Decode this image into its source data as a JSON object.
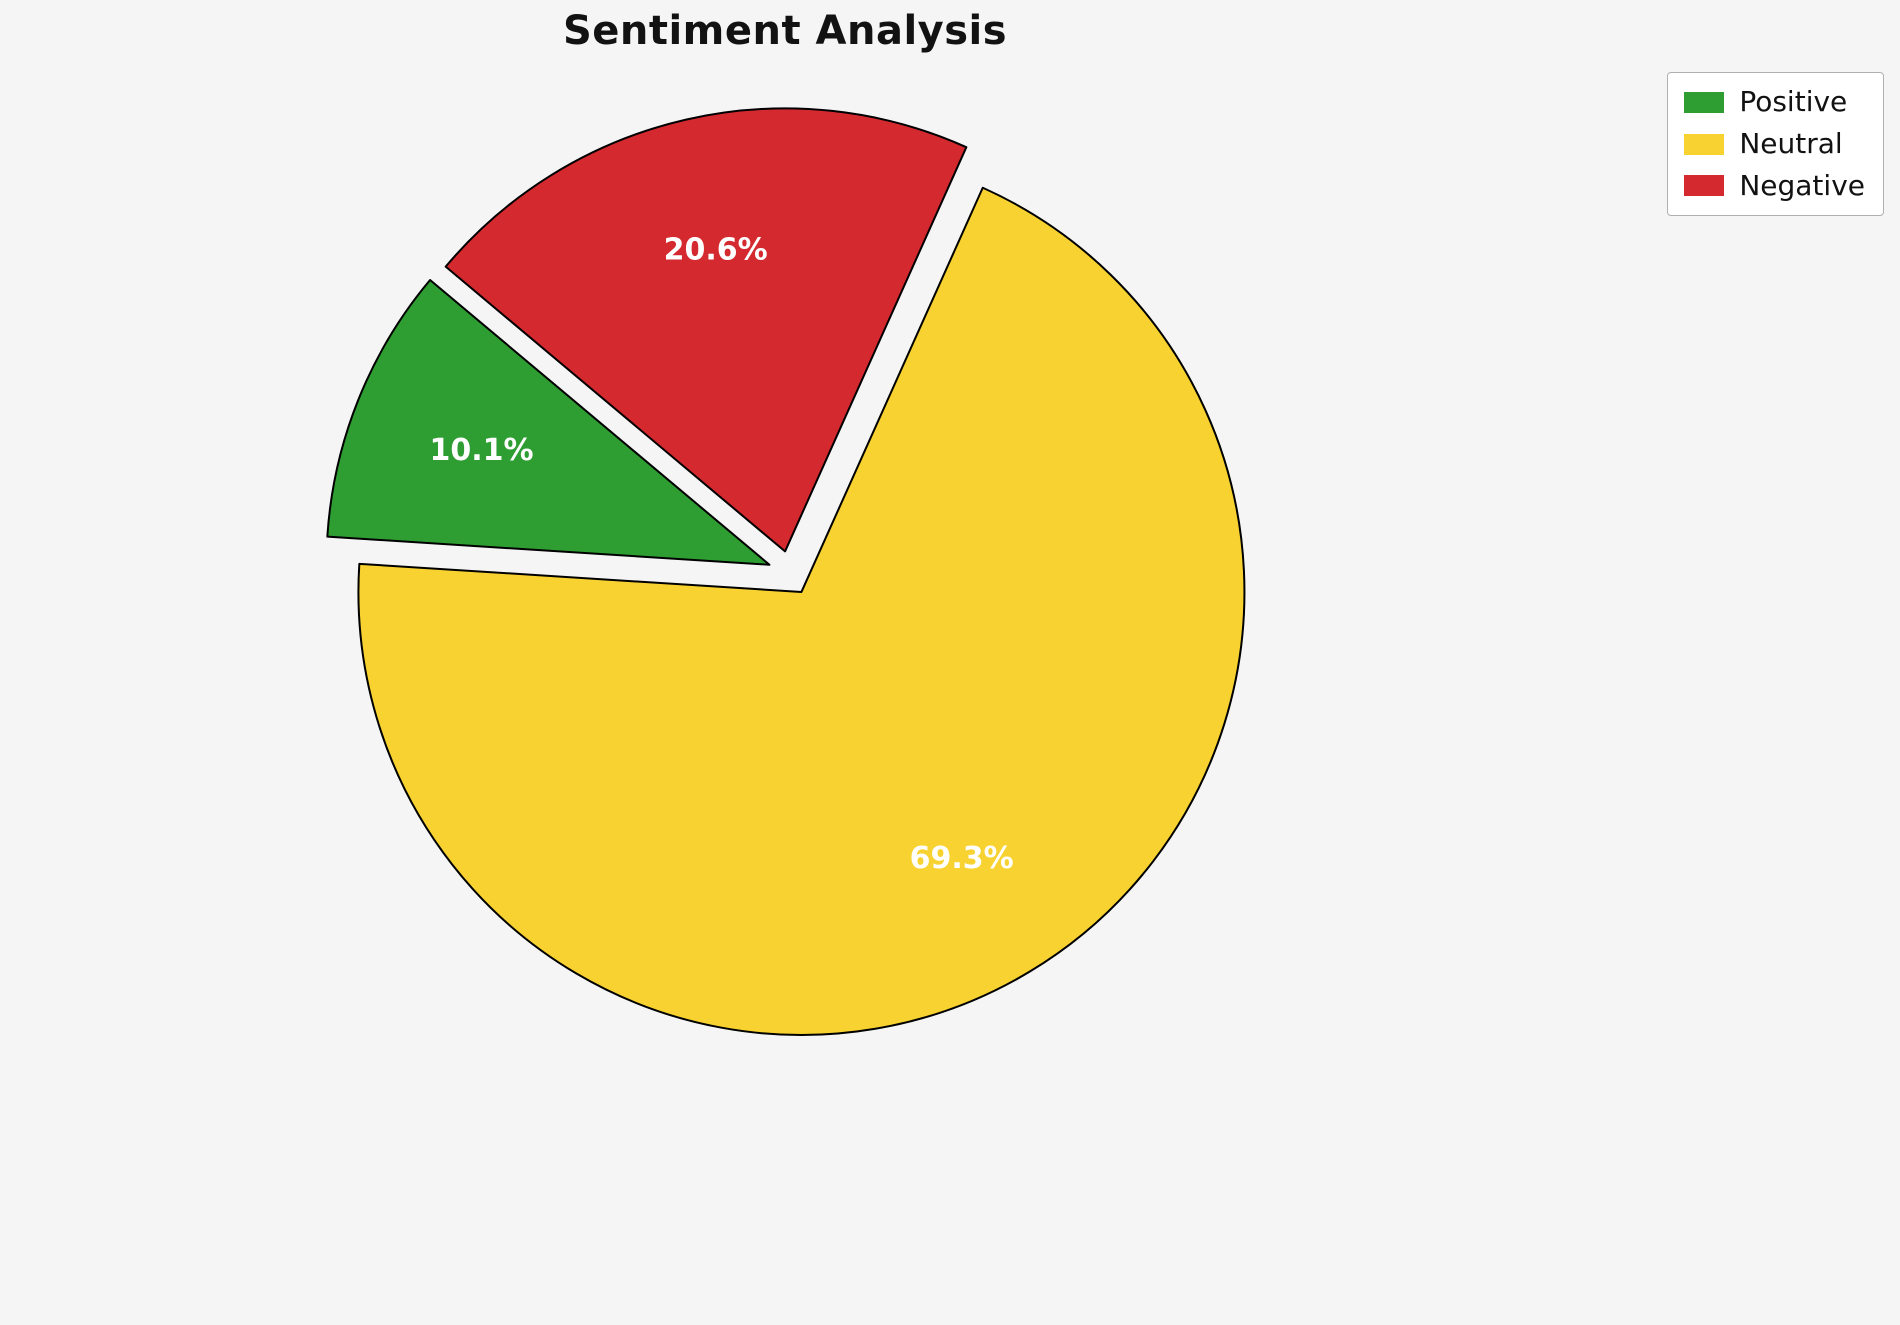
{
  "chart_data": {
    "type": "pie",
    "title": "Sentiment Analysis",
    "categories": [
      "Positive",
      "Neutral",
      "Negative"
    ],
    "values": [
      10.1,
      69.3,
      20.6
    ],
    "slices": [
      {
        "label": "Positive",
        "value": 10.1,
        "pct_label": "10.1%",
        "color": "#2E9D32"
      },
      {
        "label": "Neutral",
        "value": 69.3,
        "pct_label": "69.3%",
        "color": "#F8D230"
      },
      {
        "label": "Negative",
        "value": 20.6,
        "pct_label": "20.6%",
        "color": "#D4292E"
      }
    ],
    "start_angle": 140,
    "direction": "counterclockwise",
    "explode": 0.05,
    "pct_distance": 0.7,
    "pct_label_color": "#ffffff",
    "edge_color": "#000000",
    "background": "#f5f5f5",
    "legend": {
      "position": "upper-right",
      "labels": [
        "Positive",
        "Neutral",
        "Negative"
      ]
    }
  }
}
